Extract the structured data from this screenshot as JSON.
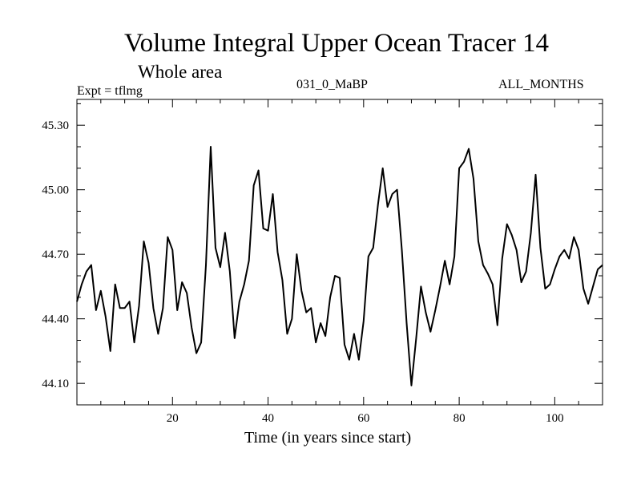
{
  "chart_data": {
    "type": "line",
    "title": "Volume Integral Upper Ocean Tracer 14",
    "subtitle": "Whole area",
    "experiment_label": "Expt = tflmg",
    "run_label": "031_0_MaBP",
    "period_label": "ALL_MONTHS",
    "xlabel": "Time (in years since start)",
    "ylabel": "",
    "xlim": [
      0,
      110
    ],
    "ylim": [
      44.0,
      45.42
    ],
    "x_ticks": [
      20,
      40,
      60,
      80,
      100
    ],
    "x_tick_labels": [
      "20",
      "40",
      "60",
      "80",
      "100"
    ],
    "y_ticks": [
      44.1,
      44.4,
      44.7,
      45.0,
      45.3
    ],
    "y_tick_labels": [
      "44.10",
      "44.40",
      "44.70",
      "45.00",
      "45.30"
    ],
    "grid": false,
    "series": [
      {
        "name": "Tracer 14",
        "x": [
          0,
          1,
          2,
          3,
          4,
          5,
          6,
          7,
          8,
          9,
          10,
          11,
          12,
          13,
          14,
          15,
          16,
          17,
          18,
          19,
          20,
          21,
          22,
          23,
          24,
          25,
          26,
          27,
          28,
          29,
          30,
          31,
          32,
          33,
          34,
          35,
          36,
          37,
          38,
          39,
          40,
          41,
          42,
          43,
          44,
          45,
          46,
          47,
          48,
          49,
          50,
          51,
          52,
          53,
          54,
          55,
          56,
          57,
          58,
          59,
          60,
          61,
          62,
          63,
          64,
          65,
          66,
          67,
          68,
          69,
          70,
          71,
          72,
          73,
          74,
          75,
          76,
          77,
          78,
          79,
          80,
          81,
          82,
          83,
          84,
          85,
          86,
          87,
          88,
          89,
          90,
          91,
          92,
          93,
          94,
          95,
          96,
          97,
          98,
          99,
          100,
          101,
          102,
          103,
          104,
          105,
          106,
          107,
          108,
          109,
          110
        ],
        "values": [
          44.48,
          44.56,
          44.62,
          44.65,
          44.44,
          44.53,
          44.41,
          44.25,
          44.56,
          44.45,
          44.45,
          44.48,
          44.29,
          44.46,
          44.76,
          44.66,
          44.45,
          44.33,
          44.45,
          44.78,
          44.72,
          44.44,
          44.57,
          44.52,
          44.36,
          44.24,
          44.29,
          44.65,
          45.2,
          44.73,
          44.64,
          44.8,
          44.62,
          44.31,
          44.48,
          44.56,
          44.67,
          45.02,
          45.09,
          44.82,
          44.81,
          44.98,
          44.71,
          44.58,
          44.33,
          44.4,
          44.7,
          44.53,
          44.43,
          44.45,
          44.29,
          44.38,
          44.32,
          44.5,
          44.6,
          44.59,
          44.28,
          44.21,
          44.33,
          44.21,
          44.39,
          44.69,
          44.73,
          44.93,
          45.1,
          44.92,
          44.98,
          45.0,
          44.72,
          44.38,
          44.09,
          44.31,
          44.55,
          44.43,
          44.34,
          44.44,
          44.55,
          44.67,
          44.56,
          44.69,
          45.1,
          45.13,
          45.19,
          45.05,
          44.76,
          44.65,
          44.61,
          44.56,
          44.37,
          44.68,
          44.84,
          44.79,
          44.72,
          44.57,
          44.62,
          44.8,
          45.07,
          44.73,
          44.54,
          44.56,
          44.63,
          44.69,
          44.72,
          44.68,
          44.78,
          44.72,
          44.54,
          44.47,
          44.55,
          44.63,
          44.65
        ]
      }
    ]
  },
  "colors": {
    "line": "#000000",
    "axes": "#000000",
    "background": "#ffffff"
  }
}
